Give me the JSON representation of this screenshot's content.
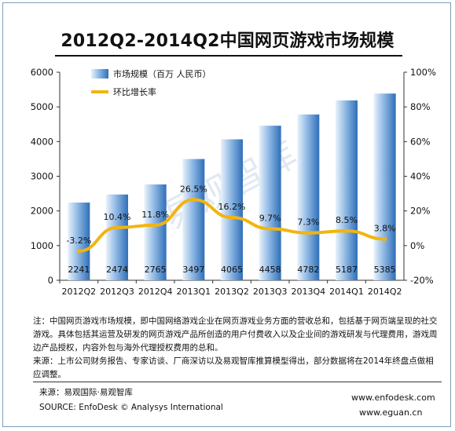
{
  "title": "2012Q2-2014Q2中国网页游戏市场规模",
  "watermark": "易观智库",
  "chart_data": {
    "type": "bar",
    "categories": [
      "2012Q2",
      "2012Q3",
      "2012Q4",
      "2013Q1",
      "2013Q2",
      "2013Q3",
      "2013Q4",
      "2014Q1",
      "2014Q2"
    ],
    "series": [
      {
        "name": "市场规模（百万 人民币）",
        "type": "bar",
        "axis": "left",
        "values": [
          2241,
          2474,
          2765,
          3497,
          4065,
          4458,
          4782,
          5187,
          5385
        ],
        "labels": [
          "2241",
          "2474",
          "2765",
          "3497",
          "4065",
          "4458",
          "4782",
          "5187",
          "5385"
        ]
      },
      {
        "name": "环比增长率",
        "type": "line",
        "axis": "right",
        "values": [
          -3.2,
          10.4,
          11.8,
          26.5,
          16.2,
          9.7,
          7.3,
          8.5,
          3.8
        ],
        "labels": [
          "-3.2%",
          "10.4%",
          "11.8%",
          "26.5%",
          "16.2%",
          "9.7%",
          "7.3%",
          "8.5%",
          "3.8%"
        ]
      }
    ],
    "ylim_left": [
      0,
      6000
    ],
    "yticks_left": [
      "0",
      "1000",
      "2000",
      "3000",
      "4000",
      "5000",
      "6000"
    ],
    "ylim_right": [
      -20,
      100
    ],
    "yticks_right": [
      "-20%",
      "0%",
      "20%",
      "40%",
      "60%",
      "80%",
      "100%"
    ],
    "legend_position": "top-left",
    "grid": false,
    "colors": {
      "bar_light": "#e9f2fb",
      "bar_mid": "#8fb8e4",
      "bar_dark": "#2f6fb8",
      "line": "#f2b50f"
    }
  },
  "notes": [
    "注：中国网页游戏市场规模，即中国网络游戏企业在网页游戏业务方面的营收总和，包括基于网页端呈现的社交游戏。具体包括其运营及研发的网页游戏产品所创造的用户付费收入以及企业间的游戏研发与代理费用，游戏周边产品授权，内容外包与海外代理授权费用的总和。",
    "来源：上市公司财务报告、专家访谈、厂商深访以及易观智库推算模型得出，部分数据将在2014年终盘点做相应调整。"
  ],
  "footer": {
    "source_cn": "来源：易观国际·易观智库",
    "source_en": "SOURCE: EnfoDesk © Analysys International",
    "site1": "www.enfodesk.com",
    "site2": "www.eguan.cn"
  }
}
